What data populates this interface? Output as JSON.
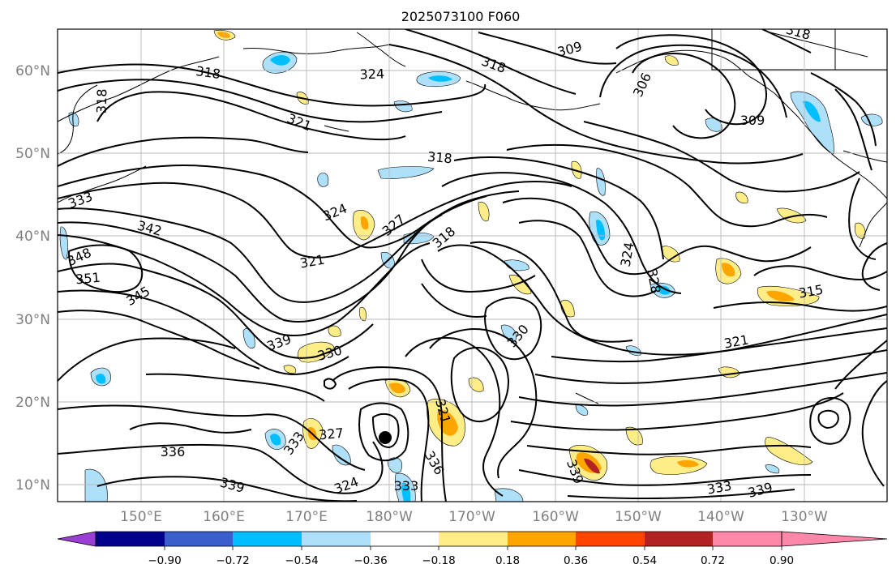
{
  "title": "2025073100 F060",
  "axes": {
    "lat_labels": [
      "10°N",
      "20°N",
      "30°N",
      "40°N",
      "50°N",
      "60°N"
    ],
    "lon_labels": [
      "150°E",
      "160°E",
      "170°E",
      "180°W",
      "170°W",
      "160°W",
      "150°W",
      "140°W",
      "130°W"
    ]
  },
  "colorbar": {
    "colors": [
      "#9b3fd4",
      "#00008b",
      "#3a5fcd",
      "#00bfff",
      "#aee0fa",
      "#ffffff",
      "#ffee88",
      "#ffa500",
      "#ff4500",
      "#b22222",
      "#ff88aa"
    ],
    "tick_labels": [
      "−0.90",
      "−0.72",
      "−0.54",
      "−0.36",
      "−0.18",
      "0.18",
      "0.36",
      "0.54",
      "0.72",
      "0.90"
    ]
  },
  "contour_labels": [
    {
      "text": "318"
    },
    {
      "text": "318"
    },
    {
      "text": "324"
    },
    {
      "text": "318"
    },
    {
      "text": "309"
    },
    {
      "text": "318"
    },
    {
      "text": "321"
    },
    {
      "text": "306"
    },
    {
      "text": "318"
    },
    {
      "text": "309"
    },
    {
      "text": "333"
    },
    {
      "text": "324"
    },
    {
      "text": "342"
    },
    {
      "text": "327"
    },
    {
      "text": "318"
    },
    {
      "text": "348"
    },
    {
      "text": "321"
    },
    {
      "text": "351"
    },
    {
      "text": "324"
    },
    {
      "text": "345"
    },
    {
      "text": "328"
    },
    {
      "text": "315"
    },
    {
      "text": "339"
    },
    {
      "text": "330"
    },
    {
      "text": "330"
    },
    {
      "text": "321"
    },
    {
      "text": "321"
    },
    {
      "text": "327"
    },
    {
      "text": "336"
    },
    {
      "text": "333"
    },
    {
      "text": "336"
    },
    {
      "text": "339"
    },
    {
      "text": "324"
    },
    {
      "text": "333"
    },
    {
      "text": "333"
    },
    {
      "text": "339"
    },
    {
      "text": "339"
    }
  ]
}
